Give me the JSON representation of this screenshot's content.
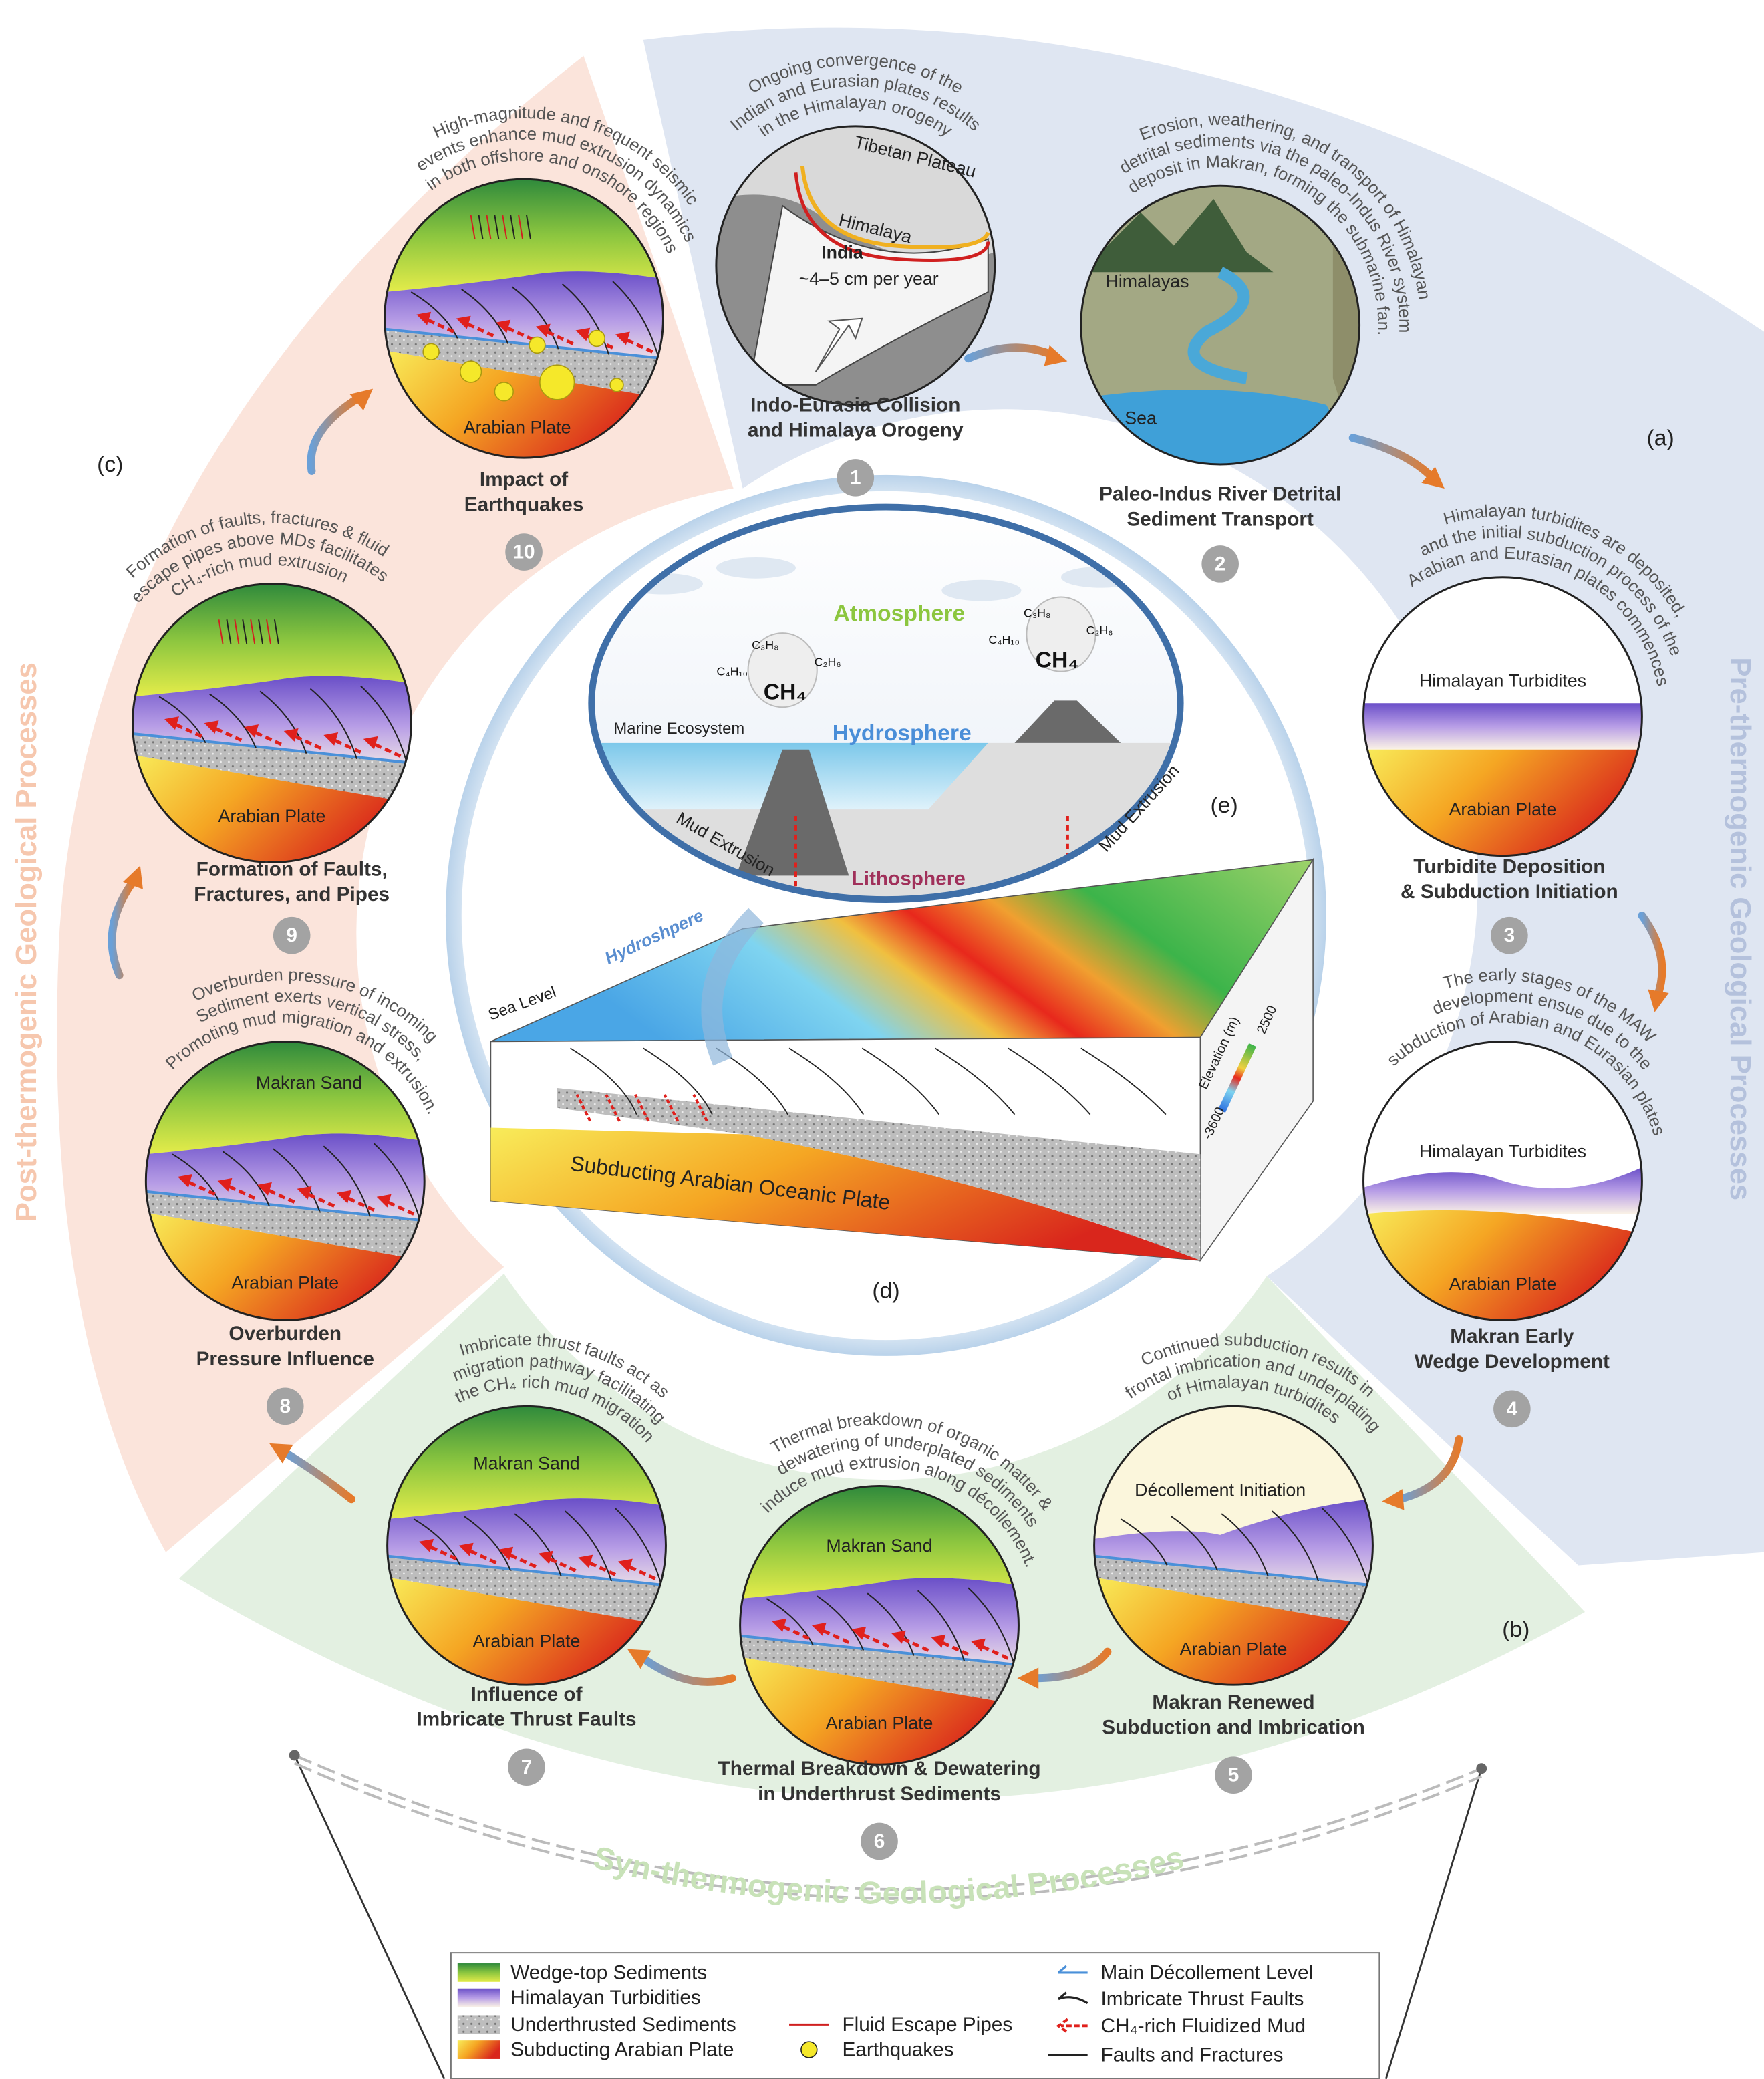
{
  "panel_labels": {
    "a": "(a)",
    "b": "(b)",
    "c": "(c)",
    "d": "(d)",
    "e": "(e)"
  },
  "sections": {
    "pre": "Pre-thermogenic Geological Processes",
    "syn": "Syn-thermogenic Geological Processes",
    "post": "Post-thermogenic Geological Processes"
  },
  "stages": [
    {
      "number": 1,
      "title": [
        "Indo-Eurasia Collision",
        "and Himalaya Orogeny"
      ],
      "caption": [
        "Ongoing convergence of the",
        "Indian and Eurasian plates results",
        "in the Himalayan orogeny"
      ],
      "labels": [
        "Tibetan Plateau",
        "Himalaya",
        "India",
        "~4–5 cm per year"
      ]
    },
    {
      "number": 2,
      "title": [
        "Paleo-Indus River Detrital",
        "Sediment Transport"
      ],
      "caption": [
        "Erosion, weathering, and transport of Himalayan",
        "detrital sediments via the paleo-Indus River system",
        "deposit in Makran, forming the submarine fan."
      ],
      "labels": [
        "Himalayas",
        "Sea"
      ]
    },
    {
      "number": 3,
      "title": [
        "Turbidite Deposition",
        "& Subduction Initiation"
      ],
      "caption": [
        "Himalayan turbidites are deposited,",
        "and the initial subduction process of the",
        "Arabian and Eurasian plates commences"
      ],
      "labels": [
        "Himalayan Turbidites",
        "Arabian Plate"
      ]
    },
    {
      "number": 4,
      "title": [
        "Makran Early",
        "Wedge Development"
      ],
      "caption": [
        "The early stages of the MAW",
        "development ensue due to the",
        "subduction of Arabian and Eurasian plates"
      ],
      "labels": [
        "Himalayan Turbidites",
        "Arabian Plate"
      ]
    },
    {
      "number": 5,
      "title": [
        "Makran Renewed",
        "Subduction and Imbrication"
      ],
      "caption": [
        "Continued subduction results in",
        "frontal imbrication and underplating",
        "of Himalayan turbidites"
      ],
      "labels": [
        "Décollement Initiation",
        "Arabian Plate"
      ]
    },
    {
      "number": 6,
      "title": [
        "Thermal Breakdown & Dewatering",
        "in Underthrust Sediments"
      ],
      "caption": [
        "Thermal breakdown of organic matter &",
        "dewatering of underplated sediments",
        "induce mud extrusion along décollement."
      ],
      "labels": [
        "Makran Sand",
        "Arabian Plate"
      ]
    },
    {
      "number": 7,
      "title": [
        "Influence of",
        "Imbricate Thrust Faults"
      ],
      "caption": [
        "Imbricate thrust faults act as",
        "migration pathway facilitating",
        "the CH₄ rich mud migration"
      ],
      "labels": [
        "Makran Sand",
        "Arabian Plate"
      ]
    },
    {
      "number": 8,
      "title": [
        "Overburden",
        "Pressure Influence"
      ],
      "caption": [
        "Overburden pressure of incoming",
        "Sediment exerts vertical stress,",
        "Promoting mud migration and extrusion."
      ],
      "labels": [
        "Makran Sand",
        "Arabian Plate"
      ]
    },
    {
      "number": 9,
      "title": [
        "Formation of Faults,",
        "Fractures, and Pipes"
      ],
      "caption": [
        "Formation of faults, fractures & fluid",
        "escape pipes above MDs facilitates",
        "CH₄-rich mud extrusion"
      ],
      "labels": [
        "Arabian Plate"
      ]
    },
    {
      "number": 10,
      "title": [
        "Impact of",
        "Earthquakes"
      ],
      "caption": [
        "High-magnitude and frequent seismic",
        "events enhance mud extrusion dynamics",
        "in both offshore and onshore regions"
      ],
      "labels": [
        "Arabian Plate"
      ]
    }
  ],
  "center_e": {
    "atmosphere": "Atmosphere",
    "hydrosphere": "Hydrosphere",
    "lithosphere": "Lithosphere",
    "marine_ecosystem": "Marine Ecosystem",
    "mud_extrusion": [
      "Mud Extrusion",
      "Mud Extrusion"
    ],
    "gases": [
      {
        "main": "CH₄",
        "others": [
          "C₃H₈",
          "C₄H₁₀",
          "C₂H₆"
        ]
      },
      {
        "main": "CH₄",
        "others": [
          "C₃H₈",
          "C₄H₁₀",
          "C₂H₆"
        ]
      }
    ]
  },
  "center_d": {
    "sea_level": "Sea Level",
    "hydrosphere": "Hydroshpere",
    "plate": "Subducting Arabian Oceanic Plate",
    "elevation_label": "Elevation (m)",
    "elevation_ticks": [
      -3600,
      2500
    ]
  },
  "legend": [
    "Wedge-top Sediments",
    "Himalayan Turbidities",
    "Underthrusted Sediments",
    "Subducting Arabian Plate",
    "Fluid Escape Pipes",
    "Earthquakes",
    "Main Décollement Level",
    "Imbricate Thrust Faults",
    "CH₄-rich Fluidized Mud",
    "Faults and Fractures"
  ]
}
